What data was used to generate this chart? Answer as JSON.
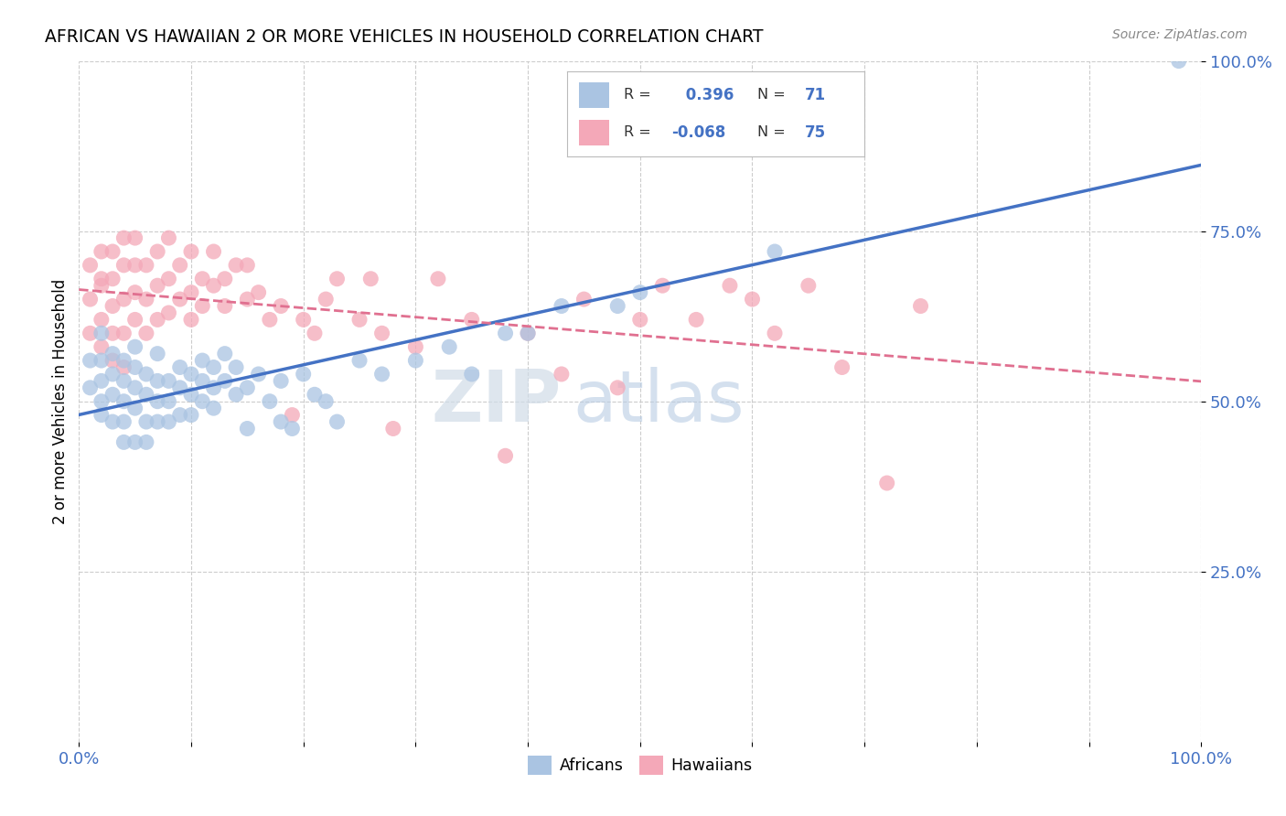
{
  "title": "AFRICAN VS HAWAIIAN 2 OR MORE VEHICLES IN HOUSEHOLD CORRELATION CHART",
  "source": "Source: ZipAtlas.com",
  "ylabel": "2 or more Vehicles in Household",
  "xlim": [
    0.0,
    1.0
  ],
  "ylim": [
    0.0,
    1.0
  ],
  "yticks": [
    0.25,
    0.5,
    0.75,
    1.0
  ],
  "ytick_labels": [
    "25.0%",
    "50.0%",
    "75.0%",
    "100.0%"
  ],
  "xticks": [
    0.0,
    0.1,
    0.2,
    0.3,
    0.4,
    0.5,
    0.6,
    0.7,
    0.8,
    0.9,
    1.0
  ],
  "xtick_labels": [
    "0.0%",
    "",
    "",
    "",
    "",
    "",
    "",
    "",
    "",
    "",
    "100.0%"
  ],
  "legend_r_african": " 0.396",
  "legend_n_african": "71",
  "legend_r_hawaiian": "-0.068",
  "legend_n_hawaiian": "75",
  "african_color": "#aac4e2",
  "hawaiian_color": "#f4a8b8",
  "line_african_color": "#4472c4",
  "line_hawaiian_color": "#e07090",
  "watermark_zip": "ZIP",
  "watermark_atlas": "atlas",
  "background_color": "#ffffff",
  "african_points_x": [
    0.01,
    0.01,
    0.02,
    0.02,
    0.02,
    0.02,
    0.02,
    0.03,
    0.03,
    0.03,
    0.03,
    0.04,
    0.04,
    0.04,
    0.04,
    0.04,
    0.05,
    0.05,
    0.05,
    0.05,
    0.05,
    0.06,
    0.06,
    0.06,
    0.06,
    0.07,
    0.07,
    0.07,
    0.07,
    0.08,
    0.08,
    0.08,
    0.09,
    0.09,
    0.09,
    0.1,
    0.1,
    0.1,
    0.11,
    0.11,
    0.11,
    0.12,
    0.12,
    0.12,
    0.13,
    0.13,
    0.14,
    0.14,
    0.15,
    0.15,
    0.16,
    0.17,
    0.18,
    0.18,
    0.19,
    0.2,
    0.21,
    0.22,
    0.23,
    0.25,
    0.27,
    0.3,
    0.33,
    0.35,
    0.38,
    0.4,
    0.43,
    0.48,
    0.5,
    0.62,
    0.98
  ],
  "african_points_y": [
    0.52,
    0.56,
    0.5,
    0.53,
    0.56,
    0.48,
    0.6,
    0.51,
    0.54,
    0.57,
    0.47,
    0.5,
    0.53,
    0.56,
    0.47,
    0.44,
    0.52,
    0.55,
    0.49,
    0.58,
    0.44,
    0.51,
    0.54,
    0.47,
    0.44,
    0.5,
    0.53,
    0.47,
    0.57,
    0.5,
    0.53,
    0.47,
    0.52,
    0.55,
    0.48,
    0.51,
    0.54,
    0.48,
    0.53,
    0.56,
    0.5,
    0.52,
    0.55,
    0.49,
    0.53,
    0.57,
    0.51,
    0.55,
    0.52,
    0.46,
    0.54,
    0.5,
    0.53,
    0.47,
    0.46,
    0.54,
    0.51,
    0.5,
    0.47,
    0.56,
    0.54,
    0.56,
    0.58,
    0.54,
    0.6,
    0.6,
    0.64,
    0.64,
    0.66,
    0.72,
    1.0
  ],
  "hawaiian_points_x": [
    0.01,
    0.01,
    0.01,
    0.02,
    0.02,
    0.02,
    0.02,
    0.02,
    0.03,
    0.03,
    0.03,
    0.03,
    0.03,
    0.04,
    0.04,
    0.04,
    0.04,
    0.04,
    0.05,
    0.05,
    0.05,
    0.05,
    0.06,
    0.06,
    0.06,
    0.07,
    0.07,
    0.07,
    0.08,
    0.08,
    0.08,
    0.09,
    0.09,
    0.1,
    0.1,
    0.1,
    0.11,
    0.11,
    0.12,
    0.12,
    0.13,
    0.13,
    0.14,
    0.15,
    0.15,
    0.16,
    0.17,
    0.18,
    0.19,
    0.2,
    0.21,
    0.22,
    0.23,
    0.25,
    0.26,
    0.27,
    0.28,
    0.3,
    0.32,
    0.35,
    0.38,
    0.4,
    0.43,
    0.45,
    0.48,
    0.5,
    0.52,
    0.55,
    0.58,
    0.6,
    0.62,
    0.65,
    0.68,
    0.72,
    0.75
  ],
  "hawaiian_points_y": [
    0.6,
    0.65,
    0.7,
    0.58,
    0.62,
    0.67,
    0.72,
    0.68,
    0.6,
    0.64,
    0.68,
    0.72,
    0.56,
    0.6,
    0.65,
    0.7,
    0.74,
    0.55,
    0.62,
    0.66,
    0.7,
    0.74,
    0.6,
    0.65,
    0.7,
    0.62,
    0.67,
    0.72,
    0.63,
    0.68,
    0.74,
    0.65,
    0.7,
    0.62,
    0.66,
    0.72,
    0.64,
    0.68,
    0.67,
    0.72,
    0.64,
    0.68,
    0.7,
    0.65,
    0.7,
    0.66,
    0.62,
    0.64,
    0.48,
    0.62,
    0.6,
    0.65,
    0.68,
    0.62,
    0.68,
    0.6,
    0.46,
    0.58,
    0.68,
    0.62,
    0.42,
    0.6,
    0.54,
    0.65,
    0.52,
    0.62,
    0.67,
    0.62,
    0.67,
    0.65,
    0.6,
    0.67,
    0.55,
    0.38,
    0.64
  ]
}
